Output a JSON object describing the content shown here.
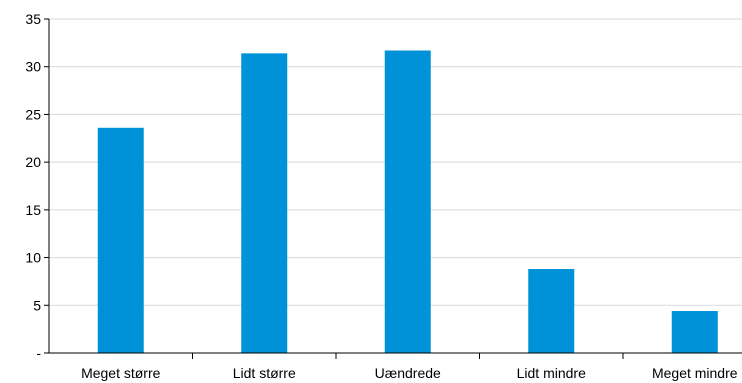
{
  "chart_data": {
    "type": "bar",
    "categories": [
      "Meget større",
      "Lidt større",
      "Uændrede",
      "Lidt mindre",
      "Meget mindre"
    ],
    "values": [
      23.6,
      31.4,
      31.7,
      8.8,
      4.4
    ],
    "ylim": [
      0,
      35
    ],
    "yticks": [
      {
        "value": 0,
        "label": "-"
      },
      {
        "value": 5,
        "label": "5"
      },
      {
        "value": 10,
        "label": "10"
      },
      {
        "value": 15,
        "label": "15"
      },
      {
        "value": 20,
        "label": "20"
      },
      {
        "value": 25,
        "label": "25"
      },
      {
        "value": 30,
        "label": "30"
      },
      {
        "value": 35,
        "label": "35"
      }
    ],
    "grid": true,
    "legend": "none",
    "bar_color": "#0092d8",
    "grid_color": "#d9d9d9",
    "axis_color": "#000000"
  }
}
